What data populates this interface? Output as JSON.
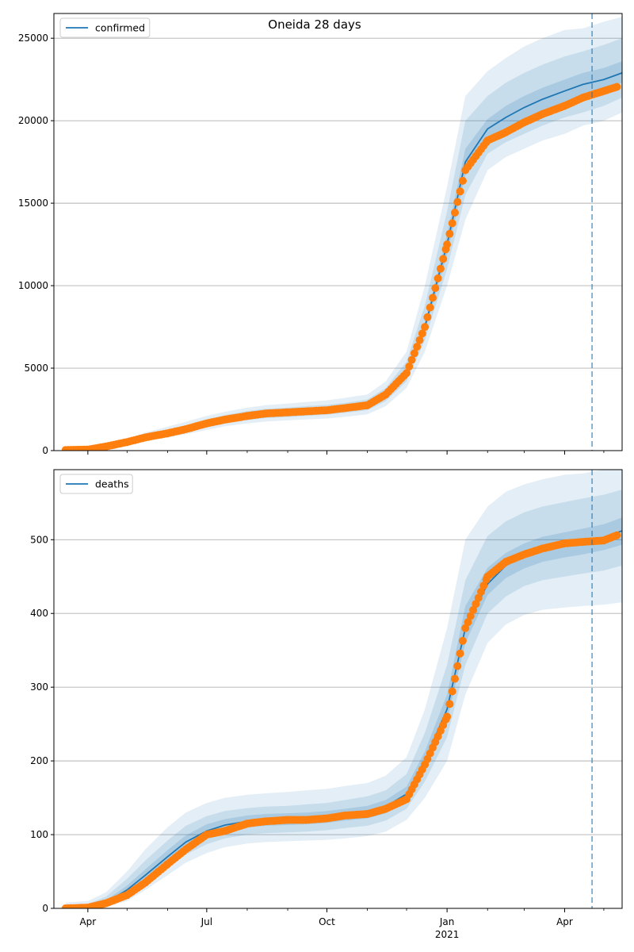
{
  "figure_title": "Oneida 28 days",
  "chart_data": [
    {
      "type": "line",
      "title": "Oneida 28 days",
      "legend": {
        "placement": "top-left",
        "entries": [
          "confirmed"
        ]
      },
      "series": [
        {
          "name": "confirmed",
          "role": "model_median",
          "color": "#1f77b4",
          "x": [
            "2020-03-15",
            "2020-04-01",
            "2020-04-15",
            "2020-05-01",
            "2020-05-15",
            "2020-06-01",
            "2020-06-15",
            "2020-07-01",
            "2020-07-15",
            "2020-08-01",
            "2020-08-15",
            "2020-09-01",
            "2020-09-15",
            "2020-10-01",
            "2020-10-15",
            "2020-11-01",
            "2020-11-15",
            "2020-12-01",
            "2020-12-15",
            "2021-01-01",
            "2021-01-15",
            "2021-02-01",
            "2021-02-15",
            "2021-03-01",
            "2021-03-15",
            "2021-04-01",
            "2021-04-15",
            "2021-05-01",
            "2021-05-15"
          ],
          "y": [
            40,
            80,
            250,
            500,
            800,
            1050,
            1300,
            1650,
            1900,
            2120,
            2250,
            2320,
            2400,
            2480,
            2600,
            2800,
            3400,
            4700,
            7500,
            12500,
            17500,
            19500,
            20200,
            20800,
            21300,
            21800,
            22200,
            22500,
            22900
          ]
        },
        {
          "name": "observed confirmed",
          "role": "observed",
          "color": "#ff7f0e",
          "x": [
            "2020-03-15",
            "2020-04-01",
            "2020-04-15",
            "2020-05-01",
            "2020-05-15",
            "2020-06-01",
            "2020-06-15",
            "2020-07-01",
            "2020-07-15",
            "2020-08-01",
            "2020-08-15",
            "2020-09-01",
            "2020-09-15",
            "2020-10-01",
            "2020-10-15",
            "2020-11-01",
            "2020-11-15",
            "2020-12-01",
            "2020-12-15",
            "2021-01-01",
            "2021-01-15",
            "2021-02-01",
            "2021-02-15",
            "2021-03-01",
            "2021-03-15",
            "2021-04-01",
            "2021-04-15",
            "2021-05-01",
            "2021-05-11"
          ],
          "y": [
            40,
            60,
            250,
            520,
            800,
            1050,
            1300,
            1650,
            1880,
            2100,
            2250,
            2320,
            2380,
            2450,
            2580,
            2750,
            3400,
            4700,
            7500,
            12500,
            17000,
            18800,
            19300,
            19900,
            20400,
            20900,
            21400,
            21800,
            22050
          ]
        }
      ],
      "bands": {
        "color": "#1f77b4",
        "levels": [
          {
            "lower": [
              0,
              40,
              180,
              380,
              620,
              800,
              1000,
              1250,
              1480,
              1650,
              1760,
              1830,
              1890,
              1950,
              2050,
              2200,
              2700,
              3800,
              6000,
              10000,
              14000,
              17000,
              17800,
              18300,
              18800,
              19200,
              19700,
              20000,
              20500
            ],
            "upper": [
              120,
              150,
              350,
              700,
              1100,
              1450,
              1750,
              2100,
              2350,
              2600,
              2750,
              2850,
              2950,
              3050,
              3200,
              3400,
              4200,
              6000,
              10000,
              16000,
              21500,
              23000,
              23800,
              24500,
              25000,
              25500,
              25600,
              26000,
              26300
            ]
          },
          {
            "lower": [
              10,
              55,
              210,
              430,
              700,
              900,
              1120,
              1400,
              1650,
              1850,
              1970,
              2030,
              2100,
              2180,
              2300,
              2450,
              3000,
              4200,
              6700,
              11000,
              15500,
              18000,
              18700,
              19200,
              19700,
              20200,
              20500,
              20900,
              21400
            ],
            "upper": [
              80,
              120,
              300,
              600,
              950,
              1250,
              1520,
              1900,
              2150,
              2400,
              2530,
              2610,
              2700,
              2780,
              2900,
              3100,
              3800,
              5400,
              8800,
              14500,
              20000,
              21500,
              22300,
              22900,
              23400,
              23900,
              24200,
              24600,
              25000
            ]
          },
          {
            "lower": [
              20,
              65,
              230,
              465,
              750,
              980,
              1220,
              1530,
              1770,
              2000,
              2120,
              2190,
              2260,
              2340,
              2460,
              2650,
              3250,
              4500,
              7200,
              11900,
              16700,
              18900,
              19500,
              20100,
              20600,
              21100,
              21500,
              21900,
              22300
            ],
            "upper": [
              60,
              100,
              275,
              540,
              860,
              1130,
              1390,
              1770,
              2030,
              2250,
              2380,
              2460,
              2540,
              2620,
              2750,
              2950,
              3550,
              4900,
              7800,
              13100,
              18300,
              20100,
              20900,
              21500,
              22000,
              22500,
              22900,
              23200,
              23600
            ]
          }
        ]
      },
      "vline": {
        "x": "2021-04-22",
        "style": "dashed"
      },
      "xlim": [
        "2020-03-06",
        "2021-05-15"
      ],
      "ylim": [
        0,
        26500
      ],
      "yticks": [
        0,
        5000,
        10000,
        15000,
        20000,
        25000
      ],
      "grid": "horizontal"
    },
    {
      "type": "line",
      "title": "",
      "legend": {
        "placement": "top-left",
        "entries": [
          "deaths"
        ]
      },
      "series": [
        {
          "name": "deaths",
          "role": "model_median",
          "color": "#1f77b4",
          "x": [
            "2020-03-15",
            "2020-04-01",
            "2020-04-15",
            "2020-05-01",
            "2020-05-15",
            "2020-06-01",
            "2020-06-15",
            "2020-07-01",
            "2020-07-15",
            "2020-08-01",
            "2020-08-15",
            "2020-09-01",
            "2020-09-15",
            "2020-10-01",
            "2020-10-15",
            "2020-11-01",
            "2020-11-15",
            "2020-12-01",
            "2020-12-15",
            "2021-01-01",
            "2021-01-15",
            "2021-02-01",
            "2021-02-15",
            "2021-03-01",
            "2021-03-15",
            "2021-04-01",
            "2021-04-15",
            "2021-05-01",
            "2021-05-15"
          ],
          "y": [
            0,
            1,
            8,
            25,
            45,
            70,
            90,
            105,
            113,
            118,
            120,
            121,
            122,
            124,
            127,
            130,
            138,
            155,
            200,
            270,
            380,
            440,
            465,
            478,
            487,
            493,
            497,
            503,
            512
          ]
        },
        {
          "name": "observed deaths",
          "role": "observed",
          "color": "#ff7f0e",
          "x": [
            "2020-03-15",
            "2020-04-01",
            "2020-04-15",
            "2020-05-01",
            "2020-05-15",
            "2020-06-01",
            "2020-06-15",
            "2020-07-01",
            "2020-07-15",
            "2020-08-01",
            "2020-08-15",
            "2020-09-01",
            "2020-09-15",
            "2020-10-01",
            "2020-10-15",
            "2020-11-01",
            "2020-11-15",
            "2020-12-01",
            "2020-12-15",
            "2021-01-01",
            "2021-01-15",
            "2021-02-01",
            "2021-02-15",
            "2021-03-01",
            "2021-03-15",
            "2021-04-01",
            "2021-04-15",
            "2021-05-01",
            "2021-05-11"
          ],
          "y": [
            0,
            1,
            7,
            18,
            35,
            60,
            80,
            100,
            105,
            115,
            118,
            120,
            120,
            122,
            126,
            128,
            135,
            148,
            195,
            260,
            380,
            450,
            470,
            480,
            488,
            495,
            497,
            499,
            506
          ]
        }
      ],
      "bands": {
        "color": "#1f77b4",
        "levels": [
          {
            "lower": [
              0,
              0,
              2,
              10,
              25,
              45,
              62,
              75,
              83,
              88,
              90,
              91,
              92,
              93,
              95,
              98,
              104,
              120,
              150,
              200,
              290,
              360,
              385,
              398,
              405,
              408,
              410,
              412,
              415
            ],
            "upper": [
              8,
              10,
              22,
              50,
              80,
              110,
              130,
              143,
              150,
              154,
              156,
              158,
              160,
              162,
              166,
              170,
              180,
              205,
              270,
              380,
              500,
              545,
              565,
              575,
              582,
              588,
              590,
              595,
              600
            ]
          },
          {
            "lower": [
              0,
              0,
              4,
              15,
              32,
              55,
              73,
              87,
              95,
              100,
              102,
              103,
              104,
              106,
              109,
              112,
              119,
              135,
              172,
              232,
              330,
              400,
              423,
              437,
              445,
              450,
              454,
              458,
              465
            ],
            "upper": [
              5,
              6,
              16,
              40,
              65,
              92,
              112,
              125,
              132,
              136,
              138,
              139,
              141,
              143,
              147,
              152,
              160,
              182,
              238,
              330,
              445,
              505,
              525,
              537,
              545,
              551,
              556,
              561,
              568
            ]
          },
          {
            "lower": [
              0,
              0,
              6,
              20,
              38,
              62,
              82,
              97,
              105,
              110,
              112,
              113,
              114,
              116,
              119,
              122,
              129,
              146,
              188,
              255,
              360,
              425,
              448,
              461,
              470,
              476,
              480,
              486,
              493
            ],
            "upper": [
              2,
              3,
              11,
              31,
              53,
              79,
              99,
              114,
              121,
              126,
              128,
              129,
              130,
              132,
              135,
              139,
              147,
              165,
              213,
              290,
              410,
              462,
              482,
              495,
              504,
              510,
              515,
              521,
              530
            ]
          }
        ]
      },
      "vline": {
        "x": "2021-04-22",
        "style": "dashed"
      },
      "xlim": [
        "2020-03-06",
        "2021-05-15"
      ],
      "ylim": [
        0,
        595
      ],
      "yticks": [
        0,
        100,
        200,
        300,
        400,
        500
      ],
      "grid": "horizontal"
    }
  ],
  "x_axis": {
    "ticks": [
      {
        "date": "2020-04-01",
        "label": "Apr"
      },
      {
        "date": "2020-07-01",
        "label": "Jul"
      },
      {
        "date": "2020-10-01",
        "label": "Oct"
      },
      {
        "date": "2021-01-01",
        "label": "Jan"
      },
      {
        "date": "2021-04-01",
        "label": "Apr"
      }
    ],
    "minor_ticks": [
      "2020-05-01",
      "2020-06-01",
      "2020-08-01",
      "2020-09-01",
      "2020-11-01",
      "2020-12-01",
      "2021-02-01",
      "2021-03-01",
      "2021-05-01"
    ],
    "year_label": {
      "date": "2021-01-01",
      "label": "2021"
    }
  }
}
